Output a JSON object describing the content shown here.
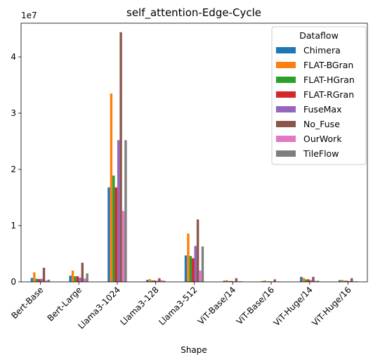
{
  "chart_data": {
    "type": "bar",
    "title": "self_attention-Edge-Cycle",
    "xlabel": "Shape",
    "ylabel": "",
    "y_scale_label": "1e7",
    "ylim": [
      0,
      46000000
    ],
    "yticks": [
      0,
      10000000,
      20000000,
      30000000,
      40000000
    ],
    "ytick_labels": [
      "0",
      "1",
      "2",
      "3",
      "4"
    ],
    "categories": [
      "Bert-Base",
      "Bert-Large",
      "Llama3-1024",
      "Llama3-128",
      "Llama3-512",
      "ViT-Base/14",
      "ViT-Base/16",
      "ViT-Huge/14",
      "ViT-Huge/16"
    ],
    "legend": {
      "title": "Dataflow",
      "position": "upper-right"
    },
    "series": [
      {
        "name": "Chimera",
        "color": "#1f77b4",
        "values": [
          700000,
          1100000,
          16800000,
          350000,
          4700000,
          200000,
          150000,
          900000,
          300000
        ]
      },
      {
        "name": "FLAT-BGran",
        "color": "#ff7f0e",
        "values": [
          1700000,
          2000000,
          33500000,
          500000,
          8600000,
          300000,
          250000,
          700000,
          350000
        ]
      },
      {
        "name": "FLAT-HGran",
        "color": "#2ca02c",
        "values": [
          550000,
          1000000,
          18900000,
          250000,
          4600000,
          150000,
          100000,
          450000,
          200000
        ]
      },
      {
        "name": "FLAT-RGran",
        "color": "#d62728",
        "values": [
          500000,
          1000000,
          16800000,
          250000,
          4200000,
          150000,
          100000,
          450000,
          200000
        ]
      },
      {
        "name": "FuseMax",
        "color": "#9467bd",
        "values": [
          550000,
          750000,
          25200000,
          200000,
          6400000,
          100000,
          80000,
          300000,
          150000
        ]
      },
      {
        "name": "No_Fuse",
        "color": "#8c564b",
        "values": [
          2500000,
          3400000,
          44400000,
          650000,
          11100000,
          650000,
          450000,
          900000,
          650000
        ]
      },
      {
        "name": "OurWork",
        "color": "#e377c2",
        "values": [
          250000,
          600000,
          12600000,
          300000,
          2000000,
          100000,
          60000,
          200000,
          100000
        ]
      },
      {
        "name": "TileFlow",
        "color": "#7f7f7f",
        "values": [
          400000,
          1500000,
          25200000,
          200000,
          6300000,
          100000,
          80000,
          200000,
          100000
        ]
      }
    ]
  }
}
